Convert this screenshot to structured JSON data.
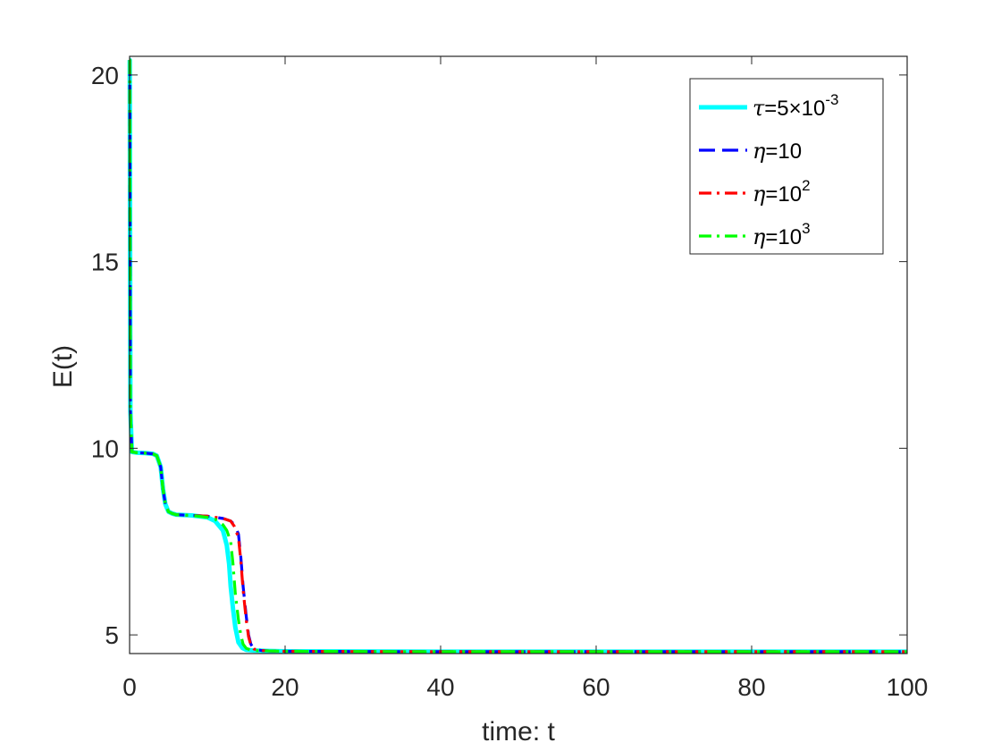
{
  "chart_data": {
    "type": "line",
    "xlabel": "time: t",
    "ylabel": "E(t)",
    "xlim": [
      0,
      100
    ],
    "ylim": [
      4.5,
      20.5
    ],
    "x_ticks": [
      "0",
      "20",
      "40",
      "60",
      "80",
      "100"
    ],
    "y_ticks": [
      "5",
      "10",
      "15",
      "20"
    ],
    "grid": false,
    "legend_position": "top-right",
    "series": [
      {
        "legend_symbol": "τ",
        "legend_text": "=5×10",
        "legend_sup": "-3",
        "color": "#00ffff",
        "style": "solid",
        "x": [
          0,
          0.02,
          0.1,
          0.3,
          1,
          2,
          3,
          3.5,
          4,
          4.3,
          4.6,
          5,
          5.5,
          6,
          8,
          10,
          11,
          12,
          12.5,
          12.8,
          13,
          13.3,
          13.6,
          14,
          14.5,
          15,
          16,
          18,
          20,
          40,
          60,
          80,
          100
        ],
        "y": [
          20.4,
          20.4,
          11.0,
          9.9,
          9.88,
          9.87,
          9.85,
          9.8,
          9.5,
          8.9,
          8.5,
          8.3,
          8.25,
          8.22,
          8.2,
          8.15,
          8.05,
          7.8,
          7.4,
          6.9,
          6.3,
          5.7,
          5.2,
          4.8,
          4.65,
          4.6,
          4.58,
          4.57,
          4.56,
          4.55,
          4.55,
          4.55,
          4.55
        ]
      },
      {
        "legend_symbol": "η",
        "legend_text": "=10",
        "legend_sup": "",
        "color": "#0000ff",
        "style": "dashed",
        "x": [
          0,
          0.02,
          0.1,
          0.3,
          1,
          2,
          3,
          3.5,
          4,
          4.3,
          4.6,
          5,
          5.5,
          6,
          8,
          10,
          12,
          13,
          13.5,
          14,
          14.3,
          14.6,
          15,
          15.3,
          15.6,
          16,
          17,
          18,
          20,
          40,
          60,
          80,
          100
        ],
        "y": [
          20.4,
          20.4,
          11.0,
          9.9,
          9.88,
          9.87,
          9.85,
          9.8,
          9.5,
          8.9,
          8.5,
          8.3,
          8.25,
          8.22,
          8.2,
          8.18,
          8.12,
          8.05,
          7.95,
          7.7,
          7.1,
          6.3,
          5.5,
          5.0,
          4.75,
          4.62,
          4.58,
          4.57,
          4.56,
          4.55,
          4.55,
          4.55,
          4.55
        ]
      },
      {
        "legend_symbol": "η",
        "legend_text": "=10",
        "legend_sup": "2",
        "color": "#ff0000",
        "style": "dashdot",
        "x": [
          0,
          0.02,
          0.1,
          0.3,
          1,
          2,
          3,
          3.5,
          4,
          4.3,
          4.6,
          5,
          5.5,
          6,
          8,
          10,
          12,
          13,
          13.5,
          14,
          14.3,
          14.6,
          15,
          15.3,
          15.6,
          16,
          17,
          18,
          20,
          40,
          60,
          80,
          100
        ],
        "y": [
          20.4,
          20.4,
          11.0,
          9.9,
          9.88,
          9.87,
          9.85,
          9.8,
          9.5,
          8.9,
          8.5,
          8.3,
          8.25,
          8.22,
          8.2,
          8.18,
          8.12,
          8.05,
          7.9,
          7.6,
          7.0,
          6.2,
          5.4,
          4.95,
          4.72,
          4.62,
          4.58,
          4.57,
          4.56,
          4.55,
          4.55,
          4.55,
          4.55
        ]
      },
      {
        "legend_symbol": "η",
        "legend_text": "=10",
        "legend_sup": "3",
        "color": "#00ff00",
        "style": "dashdot",
        "x": [
          0,
          0.02,
          0.1,
          0.3,
          1,
          2,
          3,
          3.5,
          4,
          4.3,
          4.6,
          5,
          5.5,
          6,
          8,
          10,
          11,
          12,
          12.5,
          13,
          13.3,
          13.6,
          14,
          14.3,
          14.6,
          15,
          15.5,
          16,
          18,
          20,
          40,
          60,
          80,
          100
        ],
        "y": [
          20.4,
          20.4,
          11.0,
          9.9,
          9.88,
          9.87,
          9.85,
          9.8,
          9.5,
          8.9,
          8.5,
          8.3,
          8.25,
          8.22,
          8.2,
          8.15,
          8.1,
          7.95,
          7.8,
          7.5,
          6.9,
          6.1,
          5.4,
          5.0,
          4.75,
          4.64,
          4.6,
          4.58,
          4.57,
          4.56,
          4.55,
          4.55,
          4.55,
          4.55
        ]
      }
    ]
  }
}
